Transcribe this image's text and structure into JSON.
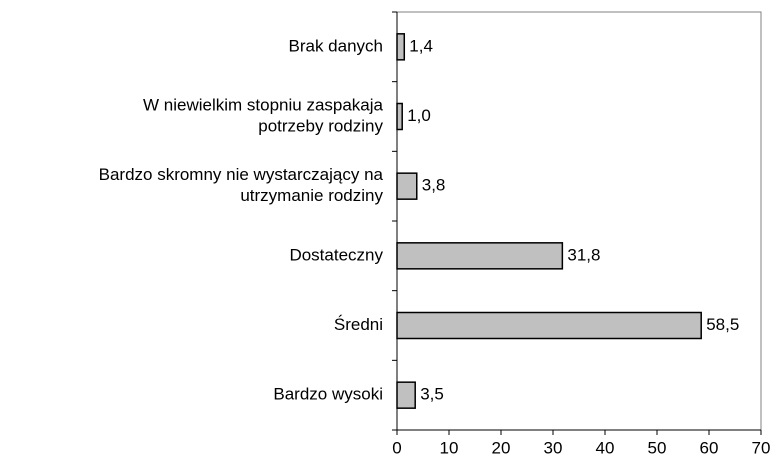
{
  "chart_data": {
    "type": "barh",
    "categories": [
      [
        "Brak danych"
      ],
      [
        "W niewielkim stopniu zaspakaja",
        "potrzeby rodziny"
      ],
      [
        "Bardzo skromny nie wystarczający na",
        "utrzymanie rodziny"
      ],
      [
        "Dostateczny"
      ],
      [
        "Średni"
      ],
      [
        "Bardzo wysoki"
      ]
    ],
    "values": [
      1.4,
      1.0,
      3.8,
      31.8,
      58.5,
      3.5
    ],
    "value_labels": [
      "1,4",
      "1,0",
      "3,8",
      "31,8",
      "58,5",
      "3,5"
    ],
    "color": "#c0c0c0",
    "xlim": [
      0,
      70
    ],
    "xticks": [
      0,
      10,
      20,
      30,
      40,
      50,
      60,
      70
    ]
  }
}
